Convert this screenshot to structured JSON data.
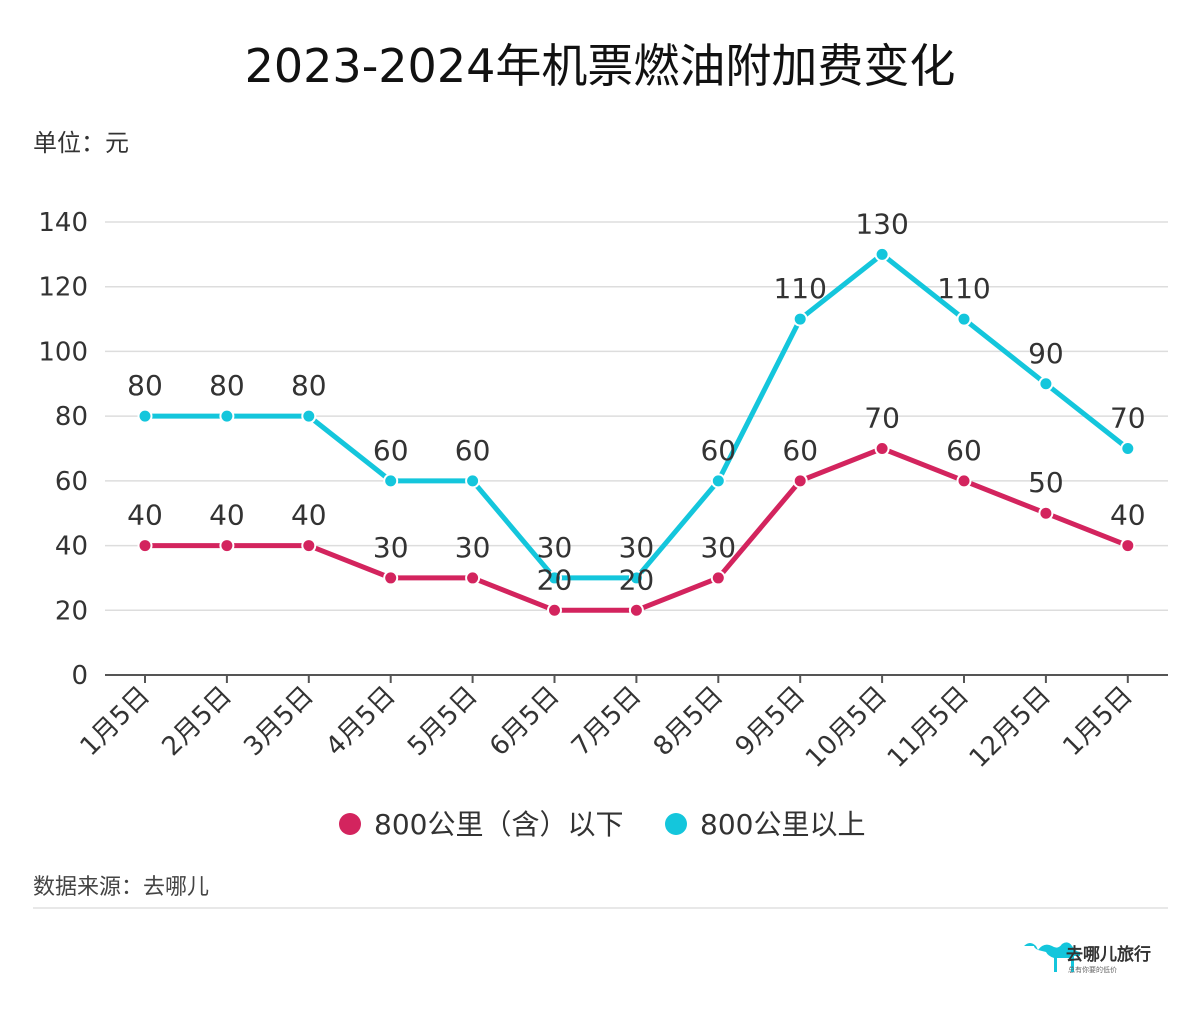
{
  "chart_data": {
    "type": "line",
    "title": "2023-2024年机票燃油附加费变化",
    "unit_label": "单位：元",
    "categories": [
      "1月5日",
      "2月5日",
      "3月5日",
      "4月5日",
      "5月5日",
      "6月5日",
      "7月5日",
      "8月5日",
      "9月5日",
      "10月5日",
      "11月5日",
      "12月5日",
      "1月5日"
    ],
    "ylim": [
      0,
      140
    ],
    "yticks": [
      0,
      20,
      40,
      60,
      80,
      100,
      120,
      140
    ],
    "grid": true,
    "legend_position": "bottom",
    "series": [
      {
        "name": "800公里（含）以下",
        "color": "#d3245e",
        "values": [
          40,
          40,
          40,
          30,
          30,
          20,
          20,
          30,
          60,
          70,
          60,
          50,
          40
        ]
      },
      {
        "name": "800公里以上",
        "color": "#14c6dc",
        "values": [
          80,
          80,
          80,
          60,
          60,
          30,
          30,
          60,
          110,
          130,
          110,
          90,
          70
        ]
      }
    ]
  },
  "footer": {
    "source": "数据来源：去哪儿",
    "brand": "去哪儿旅行",
    "brand_sub": "总有你要的低价"
  },
  "colors": {
    "gridline": "#dddddd",
    "axis": "#555555",
    "divider": "#e0e0e0"
  }
}
